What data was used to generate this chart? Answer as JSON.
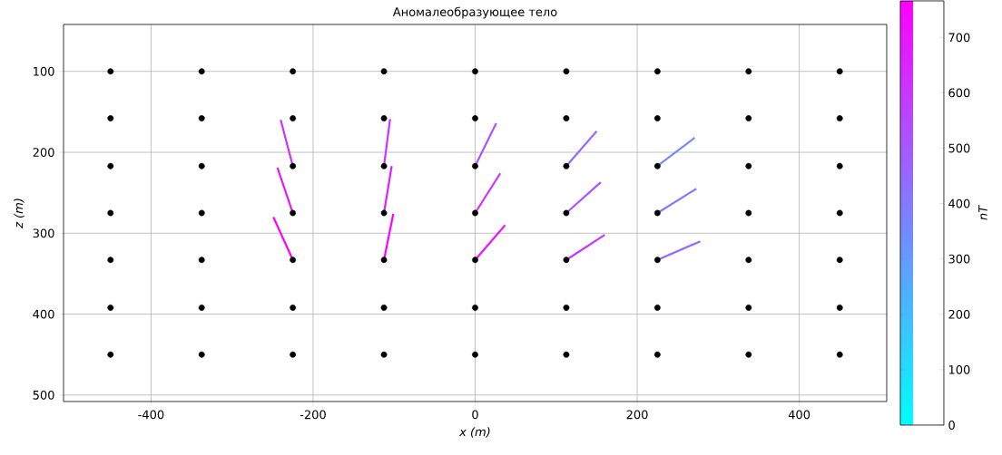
{
  "chart_data": {
    "type": "scatter",
    "title": "Аномалеобразующее тело",
    "xlabel": "x (m)",
    "ylabel": "z (m)",
    "clabel": "nT",
    "xlim": [
      -508,
      508
    ],
    "ylim": [
      508,
      42
    ],
    "xticks": [
      -400,
      -200,
      0,
      200,
      400
    ],
    "yticks": [
      100,
      200,
      300,
      400,
      500
    ],
    "clim": [
      0,
      766
    ],
    "cticks": [
      0,
      100,
      200,
      300,
      400,
      500,
      600,
      700
    ],
    "grid": true,
    "series": [
      {
        "type": "line",
        "marker": "none",
        "color": "#cc33ff",
        "x": [
          -225,
          -240
        ],
        "values": [
          217,
          160
        ]
      },
      {
        "type": "line",
        "marker": "none",
        "color": "#ee11ff",
        "x": [
          -225,
          -244
        ],
        "values": [
          275,
          219
        ]
      },
      {
        "type": "line",
        "marker": "none",
        "color": "#ff00ff",
        "x": [
          -225,
          -249
        ],
        "values": [
          333,
          280
        ]
      },
      {
        "type": "line",
        "marker": "none",
        "color": "#cc33ff",
        "x": [
          -112.5,
          -105
        ],
        "values": [
          217,
          159
        ]
      },
      {
        "type": "line",
        "marker": "none",
        "color": "#dd22ff",
        "x": [
          -112.5,
          -103
        ],
        "values": [
          275,
          217
        ]
      },
      {
        "type": "line",
        "marker": "none",
        "color": "#ff00ff",
        "x": [
          -112.5,
          -101
        ],
        "values": [
          333,
          276
        ]
      },
      {
        "type": "line",
        "marker": "none",
        "color": "#aa55ff",
        "x": [
          0,
          26
        ],
        "values": [
          217,
          164
        ]
      },
      {
        "type": "line",
        "marker": "none",
        "color": "#cc33ff",
        "x": [
          0,
          31
        ],
        "values": [
          275,
          226
        ]
      },
      {
        "type": "line",
        "marker": "none",
        "color": "#ee11ff",
        "x": [
          0,
          37
        ],
        "values": [
          333,
          290
        ]
      },
      {
        "type": "line",
        "marker": "none",
        "color": "#9966ff",
        "x": [
          112.5,
          150
        ],
        "values": [
          217,
          174
        ]
      },
      {
        "type": "line",
        "marker": "none",
        "color": "#aa55ff",
        "x": [
          112.5,
          155
        ],
        "values": [
          275,
          237
        ]
      },
      {
        "type": "line",
        "marker": "none",
        "color": "#cc33ff",
        "x": [
          112.5,
          160
        ],
        "values": [
          333,
          302
        ]
      },
      {
        "type": "line",
        "marker": "none",
        "color": "#7788ff",
        "x": [
          225,
          271
        ],
        "values": [
          217,
          182
        ]
      },
      {
        "type": "line",
        "marker": "none",
        "color": "#8877ff",
        "x": [
          225,
          273
        ],
        "values": [
          275,
          245
        ]
      },
      {
        "type": "line",
        "marker": "none",
        "color": "#9966ff",
        "x": [
          225,
          278
        ],
        "values": [
          333,
          310
        ]
      },
      {
        "marker": "circle",
        "color": "#000000",
        "x": [
          -450,
          -337.5,
          -225,
          -112.5,
          0,
          112.5,
          225,
          337.5,
          450,
          -450,
          -337.5,
          -225,
          -112.5,
          0,
          112.5,
          225,
          337.5,
          450,
          -450,
          -337.5,
          -225,
          -112.5,
          0,
          112.5,
          225,
          337.5,
          450,
          -450,
          -337.5,
          -225,
          -112.5,
          0,
          112.5,
          225,
          337.5,
          450,
          -450,
          -337.5,
          -225,
          -112.5,
          0,
          112.5,
          225,
          337.5,
          450,
          -450,
          -337.5,
          -225,
          -112.5,
          0,
          112.5,
          225,
          337.5,
          450,
          -450,
          -337.5,
          -225,
          -112.5,
          0,
          112.5,
          225,
          337.5,
          450
        ],
        "values": [
          100,
          100,
          100,
          100,
          100,
          100,
          100,
          100,
          100,
          158,
          158,
          158,
          158,
          158,
          158,
          158,
          158,
          158,
          217,
          217,
          217,
          217,
          217,
          217,
          217,
          217,
          217,
          275,
          275,
          275,
          275,
          275,
          275,
          275,
          275,
          275,
          333,
          333,
          333,
          333,
          333,
          333,
          333,
          333,
          333,
          392,
          392,
          392,
          392,
          392,
          392,
          392,
          392,
          392,
          450,
          450,
          450,
          450,
          450,
          450,
          450,
          450,
          450
        ]
      }
    ]
  }
}
